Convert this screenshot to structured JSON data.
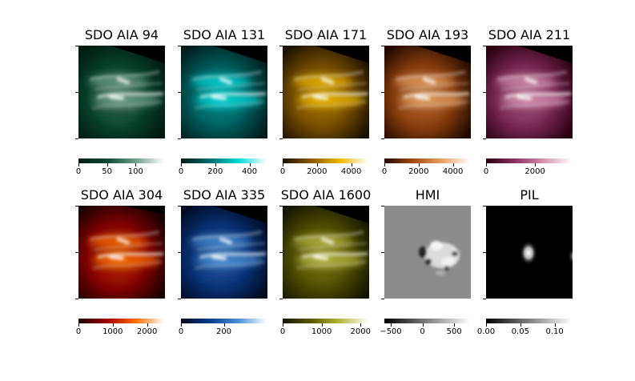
{
  "panels": [
    {
      "title": "SDO AIA 94",
      "colormap": [
        "#001a10",
        "#0a4a33",
        "#6fa08a",
        "#ffffff"
      ],
      "ticks": [
        {
          "v": 0,
          "label": "0"
        },
        {
          "v": 50,
          "label": "50"
        },
        {
          "v": 100,
          "label": "100"
        }
      ],
      "vmin": 0,
      "vmax": 150
    },
    {
      "title": "SDO AIA 131",
      "colormap": [
        "#001a1a",
        "#006b6b",
        "#00d8d8",
        "#ffffff"
      ],
      "ticks": [
        {
          "v": 0,
          "label": "0"
        },
        {
          "v": 200,
          "label": "200"
        },
        {
          "v": 400,
          "label": "400"
        }
      ],
      "vmin": 0,
      "vmax": 500
    },
    {
      "title": "SDO AIA 171",
      "colormap": [
        "#1a0f00",
        "#8a5a00",
        "#f0b800",
        "#ffffff"
      ],
      "ticks": [
        {
          "v": 0,
          "label": "0"
        },
        {
          "v": 2000,
          "label": "2000"
        },
        {
          "v": 4000,
          "label": "4000"
        }
      ],
      "vmin": 0,
      "vmax": 5000
    },
    {
      "title": "SDO AIA 193",
      "colormap": [
        "#200800",
        "#a24a10",
        "#e8a060",
        "#ffffff"
      ],
      "ticks": [
        {
          "v": 0,
          "label": "0"
        },
        {
          "v": 2000,
          "label": "2000"
        },
        {
          "v": 4000,
          "label": "4000"
        }
      ],
      "vmin": 0,
      "vmax": 5000
    },
    {
      "title": "SDO AIA 211",
      "colormap": [
        "#280010",
        "#8a3060",
        "#d890b0",
        "#ffffff"
      ],
      "ticks": [
        {
          "v": 0,
          "label": "0"
        },
        {
          "v": 2000,
          "label": "2000"
        }
      ],
      "vmin": 0,
      "vmax": 3500
    },
    {
      "title": "SDO AIA 304",
      "colormap": [
        "#1a0000",
        "#a00000",
        "#ff6a00",
        "#ffffff"
      ],
      "ticks": [
        {
          "v": 0,
          "label": "0"
        },
        {
          "v": 1000,
          "label": "1000"
        },
        {
          "v": 2000,
          "label": "2000"
        }
      ],
      "vmin": 0,
      "vmax": 2500
    },
    {
      "title": "SDO AIA 335",
      "colormap": [
        "#000a20",
        "#0a3a8a",
        "#4a90d8",
        "#ffffff"
      ],
      "ticks": [
        {
          "v": 0,
          "label": "0"
        },
        {
          "v": 200,
          "label": "200"
        }
      ],
      "vmin": 0,
      "vmax": 400
    },
    {
      "title": "SDO AIA 1600",
      "colormap": [
        "#141400",
        "#5a5a00",
        "#b8b840",
        "#ffffff"
      ],
      "ticks": [
        {
          "v": 0,
          "label": "0"
        },
        {
          "v": 1000,
          "label": "1000"
        },
        {
          "v": 2000,
          "label": "2000"
        }
      ],
      "vmin": 0,
      "vmax": 2200
    },
    {
      "title": "HMI",
      "colormap": [
        "#000000",
        "#808080",
        "#ffffff"
      ],
      "ticks": [
        {
          "v": -500,
          "label": "−500"
        },
        {
          "v": 0,
          "label": "0"
        },
        {
          "v": 500,
          "label": "500"
        }
      ],
      "vmin": -600,
      "vmax": 750
    },
    {
      "title": "PIL",
      "colormap": [
        "#000000",
        "#808080",
        "#ffffff"
      ],
      "ticks": [
        {
          "v": 0,
          "label": "0.00"
        },
        {
          "v": 0.05,
          "label": "0.05"
        },
        {
          "v": 0.1,
          "label": "0.10"
        }
      ],
      "vmin": 0,
      "vmax": 0.125
    }
  ]
}
